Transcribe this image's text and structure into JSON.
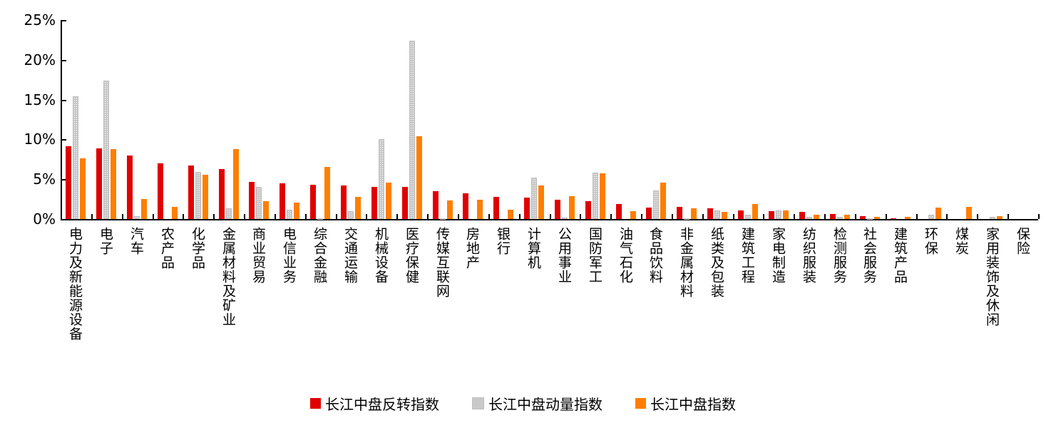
{
  "chart_data": {
    "type": "bar",
    "title": "",
    "xlabel": "",
    "ylabel": "",
    "ylim": [
      0,
      25
    ],
    "y_ticks": [
      "0%",
      "5%",
      "10%",
      "15%",
      "20%",
      "25%"
    ],
    "grid": false,
    "legend_position": "bottom",
    "categories": [
      "电力及新能源设备",
      "电子",
      "汽车",
      "农产品",
      "化学品",
      "金属材料及矿业",
      "商业贸易",
      "电信业务",
      "综合金融",
      "交通运输",
      "机械设备",
      "医疗保健",
      "传媒互联网",
      "房地产",
      "银行",
      "计算机",
      "公用事业",
      "国防军工",
      "油气石化",
      "食品饮料",
      "非金属材料",
      "纸类及包装",
      "建筑工程",
      "家电制造",
      "纺织服装",
      "检测服务",
      "社会服务",
      "建筑产品",
      "环保",
      "煤炭",
      "家用装饰及休闲",
      "保险"
    ],
    "series": [
      {
        "name": "长江中盘反转指数",
        "color": "#e00000",
        "values": [
          9.1,
          8.9,
          8.0,
          7.0,
          6.7,
          6.3,
          4.7,
          4.5,
          4.3,
          4.2,
          4.0,
          4.0,
          3.5,
          3.2,
          2.8,
          2.7,
          2.4,
          2.2,
          1.9,
          1.4,
          1.5,
          1.3,
          1.1,
          1.0,
          0.9,
          0.6,
          0.4,
          0.1,
          0.0,
          0.0,
          0.0,
          0.0
        ]
      },
      {
        "name": "长江中盘动量指数",
        "color": "#c9c9c9",
        "values": [
          15.4,
          17.4,
          0.4,
          0.0,
          5.9,
          1.3,
          4.0,
          1.2,
          0.1,
          1.0,
          10.0,
          22.4,
          0.1,
          0.0,
          0.0,
          5.2,
          0.2,
          5.8,
          0.0,
          3.6,
          0.1,
          1.1,
          0.5,
          1.1,
          0.3,
          0.3,
          0.1,
          0.0,
          0.5,
          0.0,
          0.3,
          0.0
        ]
      },
      {
        "name": "长江中盘指数",
        "color": "#ff7e00",
        "values": [
          7.6,
          8.8,
          2.5,
          1.5,
          5.6,
          8.8,
          2.2,
          2.1,
          6.5,
          2.8,
          4.6,
          10.4,
          2.3,
          2.4,
          1.2,
          4.2,
          2.9,
          5.7,
          1.0,
          4.6,
          1.3,
          0.9,
          1.9,
          1.1,
          0.5,
          0.5,
          0.3,
          0.3,
          1.4,
          1.5,
          0.4,
          0.0
        ]
      }
    ]
  }
}
